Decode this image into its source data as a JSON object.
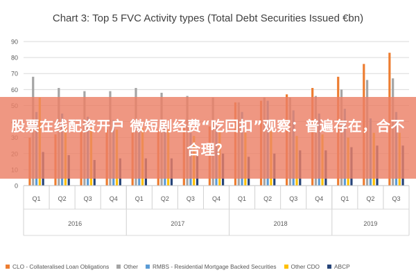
{
  "banner": {
    "text": "股票在线配资开户 微短剧经费“吃回扣”观察：普遍存在，合不合理？"
  },
  "chart_data": {
    "type": "bar",
    "title": "Chart 3: Top 5 FVC Activity types (Total Debt Securities Issued €bn)",
    "xlabel": "",
    "ylabel": "",
    "ylim": [
      0,
      90
    ],
    "yticks": [
      0,
      10,
      20,
      30,
      40,
      50,
      60,
      70,
      80,
      90
    ],
    "grid": true,
    "legend_position": "bottom",
    "groups": [
      {
        "label": "2016",
        "quarters": [
          "Q1",
          "Q2",
          "Q3",
          "Q4"
        ]
      },
      {
        "label": "2017",
        "quarters": [
          "Q1",
          "Q2",
          "Q3",
          "Q4"
        ]
      },
      {
        "label": "2018",
        "quarters": [
          "Q1",
          "Q2",
          "Q3",
          "Q4"
        ]
      },
      {
        "label": "2019",
        "quarters": [
          "Q1",
          "Q2",
          "Q3"
        ]
      }
    ],
    "categories": [
      "Q1",
      "Q2",
      "Q3",
      "Q4",
      "Q1",
      "Q2",
      "Q3",
      "Q4",
      "Q1",
      "Q2",
      "Q3",
      "Q4",
      "Q1",
      "Q2",
      "Q3"
    ],
    "series": [
      {
        "name": "CLO - Collateralised Loan Obligations",
        "color": "#ed7d31",
        "values": [
          30,
          32,
          34,
          35,
          36,
          35,
          36,
          37,
          52,
          53,
          57,
          61,
          68,
          76,
          83
        ]
      },
      {
        "name": "Other",
        "color": "#a5a5a5",
        "values": [
          68,
          61,
          59,
          59,
          61,
          58,
          56,
          55,
          52,
          55,
          55,
          56,
          60,
          66,
          67
        ]
      },
      {
        "name": "RMBS - Residential Mortgage Backed Securities",
        "color": "#5b9bd5",
        "values": [
          46,
          45,
          43,
          41,
          38,
          37,
          33,
          37,
          46,
          53,
          47,
          45,
          48,
          42,
          46
        ]
      },
      {
        "name": "Other CDO",
        "color": "#ffc000",
        "values": [
          55,
          37,
          36,
          35,
          36,
          35,
          31,
          34,
          33,
          34,
          31,
          32,
          30,
          33,
          33
        ]
      },
      {
        "name": "ABCP",
        "color": "#264478",
        "values": [
          21,
          19,
          16,
          17,
          17,
          17,
          19,
          20,
          18,
          20,
          22,
          22,
          24,
          25,
          25
        ]
      }
    ]
  }
}
